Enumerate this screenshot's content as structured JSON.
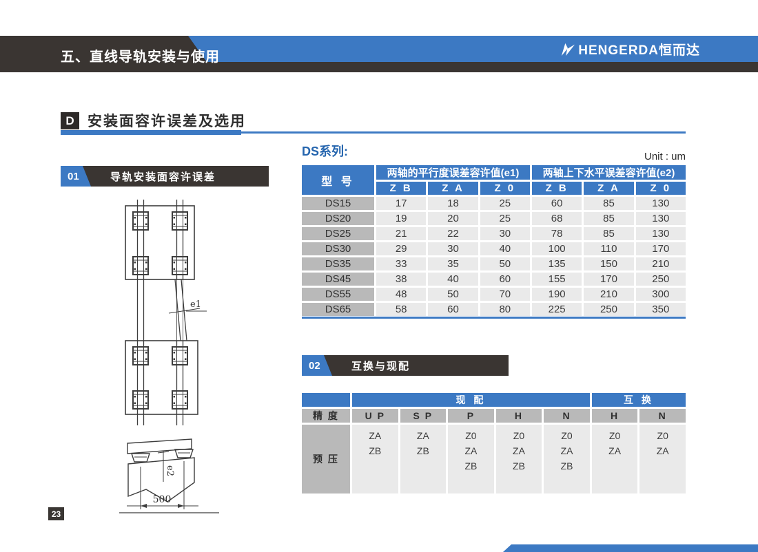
{
  "header": {
    "chapter_title": "五、直线导轨安装与使用",
    "logo_text": "HENGERDA恒而达"
  },
  "section": {
    "badge": "D",
    "title": "安装面容许误差及选用"
  },
  "series_label": "DS系列:",
  "unit_label": "Unit : um",
  "blocks": {
    "b01": {
      "num": "01",
      "title": "导轨安装面容许误差"
    },
    "b02": {
      "num": "02",
      "title": "互换与现配"
    }
  },
  "diagram": {
    "e1_label": "e1",
    "e2_label": "e2",
    "dim_label": "500"
  },
  "tolerance_table": {
    "model_header": "型 号",
    "group1_header": "两轴的平行度误差容许值(e1)",
    "group2_header": "两轴上下水平误差容许值(e2)",
    "subheaders": [
      "Z B",
      "Z A",
      "Z 0",
      "Z B",
      "Z A",
      "Z 0"
    ],
    "rows": [
      {
        "model": "DS15",
        "values": [
          "17",
          "18",
          "25",
          "60",
          "85",
          "130"
        ]
      },
      {
        "model": "DS20",
        "values": [
          "19",
          "20",
          "25",
          "68",
          "85",
          "130"
        ]
      },
      {
        "model": "DS25",
        "values": [
          "21",
          "22",
          "30",
          "78",
          "85",
          "130"
        ]
      },
      {
        "model": "DS30",
        "values": [
          "29",
          "30",
          "40",
          "100",
          "110",
          "170"
        ]
      },
      {
        "model": "DS35",
        "values": [
          "33",
          "35",
          "50",
          "135",
          "150",
          "210"
        ]
      },
      {
        "model": "DS45",
        "values": [
          "38",
          "40",
          "60",
          "155",
          "170",
          "250"
        ]
      },
      {
        "model": "DS55",
        "values": [
          "48",
          "50",
          "70",
          "190",
          "210",
          "300"
        ]
      },
      {
        "model": "DS65",
        "values": [
          "58",
          "60",
          "80",
          "225",
          "250",
          "350"
        ]
      }
    ]
  },
  "match_table": {
    "precision_header": "精 度",
    "match_group_header": "现 配",
    "interchange_group_header": "互 换",
    "columns": [
      "U P",
      "S P",
      "P",
      "H",
      "N",
      "H",
      "N"
    ],
    "preload_header": "预 压",
    "preload_values": [
      [
        "ZA",
        "ZB"
      ],
      [
        "ZA",
        "ZB"
      ],
      [
        "Z0",
        "ZA",
        "ZB"
      ],
      [
        "Z0",
        "ZA",
        "ZB"
      ],
      [
        "Z0",
        "ZA",
        "ZB"
      ],
      [
        "Z0",
        "ZA"
      ],
      [
        "Z0",
        "ZA"
      ]
    ]
  },
  "page_number": "23",
  "colors": {
    "accent_blue": "#3c79c3",
    "dark_bar": "#3a3532",
    "header_gray": "#b9b9b9",
    "cell_gray": "#eaeaea"
  }
}
